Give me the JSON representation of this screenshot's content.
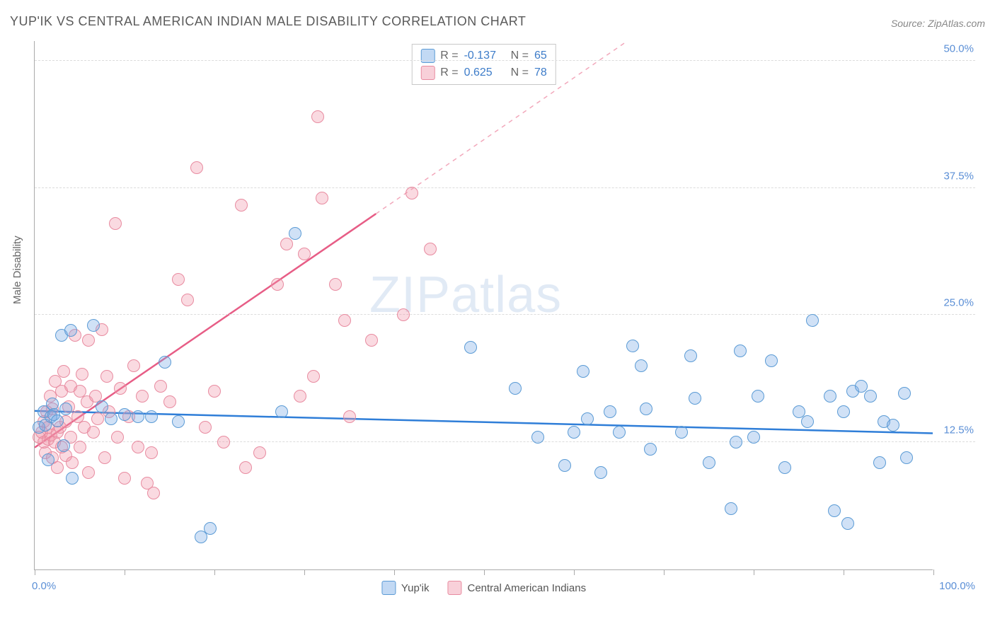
{
  "title": "YUP'IK VS CENTRAL AMERICAN INDIAN MALE DISABILITY CORRELATION CHART",
  "source_label": "Source: ZipAtlas.com",
  "y_axis_label": "Male Disability",
  "watermark_a": "ZIP",
  "watermark_b": "atlas",
  "colors": {
    "series_a_fill": "rgba(120,170,230,0.35)",
    "series_a_stroke": "#5b9bd5",
    "series_b_fill": "rgba(240,150,170,0.35)",
    "series_b_stroke": "#e88ba0",
    "trend_a": "#2f7ed8",
    "trend_b": "#e75d86",
    "trend_b_dash": "#f2a8bb",
    "grid": "#dcdcdc",
    "axis": "#aaaaaa",
    "tick_label": "#5b8fd6",
    "title_color": "#5a5a5a",
    "stat_value": "#3d7cc9"
  },
  "chart": {
    "type": "scatter",
    "xlim": [
      0,
      100
    ],
    "ylim": [
      0,
      52
    ],
    "x_ticks": [
      0,
      10,
      20,
      30,
      40,
      50,
      60,
      70,
      80,
      90,
      100
    ],
    "x_tick_labels": {
      "0": "0.0%",
      "100": "100.0%"
    },
    "y_grid": [
      12.5,
      25.0,
      37.5,
      50.0
    ],
    "y_tick_labels": [
      "12.5%",
      "25.0%",
      "37.5%",
      "50.0%"
    ],
    "marker_radius": 9,
    "trend_lines": {
      "a": {
        "x1": 0,
        "y1": 15.6,
        "x2": 100,
        "y2": 13.4,
        "width": 2.5
      },
      "b_solid": {
        "x1": 0,
        "y1": 12.0,
        "x2": 38,
        "y2": 35.0,
        "width": 2.5
      },
      "b_dash": {
        "x1": 38,
        "y1": 35.0,
        "x2": 66,
        "y2": 52.0,
        "width": 1.5,
        "dash": "6,6"
      }
    }
  },
  "stats_box": {
    "rows": [
      {
        "swatch": "blue",
        "r_label": "R =",
        "r": "-0.137",
        "n_label": "N =",
        "n": "65"
      },
      {
        "swatch": "pink",
        "r_label": "R =",
        "r": "0.625",
        "n_label": "N =",
        "n": "78"
      }
    ]
  },
  "bottom_legend": [
    {
      "swatch": "blue",
      "label": "Yup'ik"
    },
    {
      "swatch": "pink",
      "label": "Central American Indians"
    }
  ],
  "series_a": [
    [
      0.5,
      14.0
    ],
    [
      1.0,
      15.5
    ],
    [
      1.2,
      14.2
    ],
    [
      1.5,
      10.8
    ],
    [
      1.8,
      15.0
    ],
    [
      2.0,
      16.3
    ],
    [
      2.1,
      15.2
    ],
    [
      2.5,
      14.6
    ],
    [
      3.0,
      23.0
    ],
    [
      3.2,
      12.2
    ],
    [
      3.5,
      15.8
    ],
    [
      4.0,
      23.5
    ],
    [
      4.2,
      9.0
    ],
    [
      6.5,
      24.0
    ],
    [
      7.5,
      16.0
    ],
    [
      8.5,
      14.8
    ],
    [
      10.0,
      15.2
    ],
    [
      11.5,
      15.0
    ],
    [
      13.0,
      15.0
    ],
    [
      14.5,
      20.4
    ],
    [
      16.0,
      14.5
    ],
    [
      18.5,
      3.2
    ],
    [
      19.5,
      4.0
    ],
    [
      27.5,
      15.5
    ],
    [
      29.0,
      33.0
    ],
    [
      48.5,
      21.8
    ],
    [
      53.5,
      17.8
    ],
    [
      56.0,
      13.0
    ],
    [
      59.0,
      10.2
    ],
    [
      60.0,
      13.5
    ],
    [
      61.0,
      19.5
    ],
    [
      61.5,
      14.8
    ],
    [
      63.0,
      9.5
    ],
    [
      64.0,
      15.5
    ],
    [
      65.0,
      13.5
    ],
    [
      66.5,
      22.0
    ],
    [
      67.5,
      20.0
    ],
    [
      68.0,
      15.8
    ],
    [
      68.5,
      11.8
    ],
    [
      72.0,
      13.5
    ],
    [
      73.5,
      16.8
    ],
    [
      73.0,
      21.0
    ],
    [
      75.0,
      10.5
    ],
    [
      77.5,
      6.0
    ],
    [
      78.0,
      12.5
    ],
    [
      78.5,
      21.5
    ],
    [
      80.0,
      13.0
    ],
    [
      80.5,
      17.0
    ],
    [
      82.0,
      20.5
    ],
    [
      83.5,
      10.0
    ],
    [
      85.0,
      15.5
    ],
    [
      86.0,
      14.5
    ],
    [
      86.5,
      24.5
    ],
    [
      88.5,
      17.0
    ],
    [
      89.0,
      5.8
    ],
    [
      90.0,
      15.5
    ],
    [
      90.5,
      4.5
    ],
    [
      91.0,
      17.5
    ],
    [
      92.0,
      18.0
    ],
    [
      93.0,
      17.0
    ],
    [
      94.0,
      10.5
    ],
    [
      94.5,
      14.5
    ],
    [
      95.5,
      14.2
    ],
    [
      96.8,
      17.3
    ],
    [
      97.0,
      11.0
    ]
  ],
  "series_b": [
    [
      0.5,
      13.0
    ],
    [
      0.8,
      13.5
    ],
    [
      1.0,
      12.5
    ],
    [
      1.0,
      14.5
    ],
    [
      1.2,
      11.5
    ],
    [
      1.3,
      15.5
    ],
    [
      1.5,
      12.8
    ],
    [
      1.5,
      14.0
    ],
    [
      1.7,
      17.0
    ],
    [
      1.8,
      13.2
    ],
    [
      2.0,
      11.0
    ],
    [
      2.0,
      15.8
    ],
    [
      2.2,
      12.5
    ],
    [
      2.3,
      18.5
    ],
    [
      2.5,
      13.5
    ],
    [
      2.5,
      10.0
    ],
    [
      2.8,
      14.0
    ],
    [
      3.0,
      17.5
    ],
    [
      3.0,
      12.0
    ],
    [
      3.2,
      19.5
    ],
    [
      3.5,
      14.5
    ],
    [
      3.5,
      11.2
    ],
    [
      3.8,
      16.0
    ],
    [
      4.0,
      13.0
    ],
    [
      4.0,
      18.0
    ],
    [
      4.2,
      10.5
    ],
    [
      4.5,
      23.0
    ],
    [
      4.8,
      15.0
    ],
    [
      5.0,
      17.5
    ],
    [
      5.0,
      12.0
    ],
    [
      5.3,
      19.2
    ],
    [
      5.5,
      14.0
    ],
    [
      5.8,
      16.5
    ],
    [
      6.0,
      22.5
    ],
    [
      6.0,
      9.5
    ],
    [
      6.5,
      13.5
    ],
    [
      6.8,
      17.0
    ],
    [
      7.0,
      14.8
    ],
    [
      7.5,
      23.6
    ],
    [
      7.8,
      11.0
    ],
    [
      8.0,
      19.0
    ],
    [
      8.3,
      15.5
    ],
    [
      9.0,
      34.0
    ],
    [
      9.2,
      13.0
    ],
    [
      9.5,
      17.8
    ],
    [
      10.0,
      9.0
    ],
    [
      10.5,
      15.0
    ],
    [
      11.0,
      20.0
    ],
    [
      11.5,
      12.0
    ],
    [
      12.0,
      17.0
    ],
    [
      12.5,
      8.5
    ],
    [
      13.0,
      11.5
    ],
    [
      13.2,
      7.5
    ],
    [
      14.0,
      18.0
    ],
    [
      15.0,
      16.5
    ],
    [
      16.0,
      28.5
    ],
    [
      17.0,
      26.5
    ],
    [
      18.0,
      39.5
    ],
    [
      19.0,
      14.0
    ],
    [
      20.0,
      17.5
    ],
    [
      21.0,
      12.5
    ],
    [
      23.0,
      35.8
    ],
    [
      23.5,
      10.0
    ],
    [
      25.0,
      11.5
    ],
    [
      27.0,
      28.0
    ],
    [
      28.0,
      32.0
    ],
    [
      29.5,
      17.0
    ],
    [
      30.0,
      31.0
    ],
    [
      31.0,
      19.0
    ],
    [
      31.5,
      44.5
    ],
    [
      32.0,
      36.5
    ],
    [
      33.5,
      28.0
    ],
    [
      34.5,
      24.5
    ],
    [
      35.0,
      15.0
    ],
    [
      37.5,
      22.5
    ],
    [
      41.0,
      25.0
    ],
    [
      42.0,
      37.0
    ],
    [
      44.0,
      31.5
    ]
  ]
}
